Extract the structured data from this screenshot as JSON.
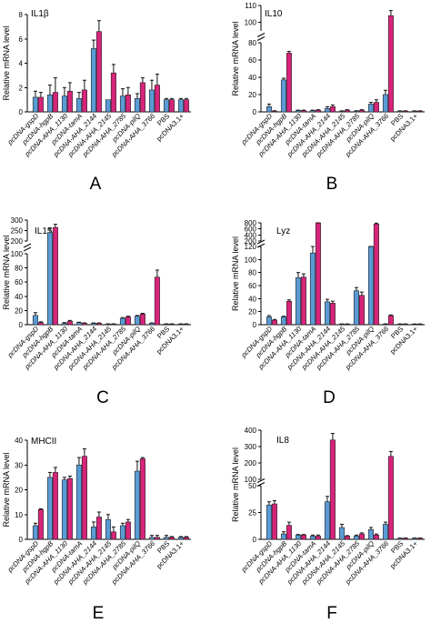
{
  "colors": {
    "series1": "#5b9bd5",
    "series2": "#d6257a",
    "edge": "#222222"
  },
  "x_labels": [
    "pcDNA-gspD",
    "pcDNA-hgpB",
    "pcDNA-AHA_1130",
    "pcDNA-tamA",
    "pcDNA-AHA_2144",
    "pcDNA-AHA_2145",
    "pcDNA-AHA_2785",
    "pcDNA-pilQ",
    "pcDNA-AHA_3766",
    "PBS",
    "pcDNA3.1+"
  ],
  "chart_data": [
    {
      "type": "bar",
      "letter": "A",
      "title": "IL1β",
      "ylabel": "Relative mRNA level",
      "ylim": [
        0,
        8
      ],
      "yticks": [
        0,
        2,
        4,
        6,
        8
      ],
      "grid": false,
      "legend": "none",
      "categories": [
        "pcDNA-gspD",
        "pcDNA-hgpB",
        "pcDNA-AHA_1130",
        "pcDNA-tamA",
        "pcDNA-AHA_2144",
        "pcDNA-AHA_2145",
        "pcDNA-AHA_2785",
        "pcDNA-pilQ",
        "pcDNA-AHA_3766",
        "PBS",
        "pcDNA3.1+"
      ],
      "series": [
        {
          "values": [
            1.2,
            1.4,
            1.3,
            1.1,
            5.2,
            1.0,
            1.3,
            1.1,
            1.8,
            1.0,
            1.0
          ],
          "errors": [
            0.5,
            0.8,
            0.7,
            0.5,
            0.7,
            0.0,
            0.6,
            0.4,
            0.8,
            0.1,
            0.1
          ]
        },
        {
          "values": [
            1.2,
            1.6,
            1.7,
            1.8,
            6.6,
            3.2,
            1.4,
            2.4,
            2.2,
            1.0,
            1.0
          ],
          "errors": [
            0.4,
            1.2,
            0.7,
            0.8,
            0.9,
            0.7,
            0.6,
            0.4,
            0.9,
            0.1,
            0.1
          ]
        }
      ]
    },
    {
      "type": "bar",
      "letter": "B",
      "title": "IL10",
      "ylabel": "Relative mRNA level",
      "yticks": [
        0,
        20,
        40,
        60,
        80,
        100,
        110
      ],
      "grid": false,
      "legend": "none",
      "axis_break": {
        "low": [
          0,
          80
        ],
        "high": [
          95,
          110
        ]
      },
      "categories": [
        "pcDNA-gspD",
        "pcDNA-hgpB",
        "pcDNA-AHA_1130",
        "pcDNA-tamA",
        "pcDNA-AHA_2144",
        "pcDNA-AHA_2145",
        "pcDNA-AHA_2785",
        "pcDNA-pilQ",
        "pcDNA-AHA_3766",
        "PBS",
        "pcDNA3.1+"
      ],
      "series": [
        {
          "values": [
            6,
            37,
            1.5,
            1.5,
            4,
            1,
            1,
            9,
            20,
            1,
            1
          ],
          "errors": [
            3,
            2,
            0.5,
            0.5,
            2,
            0.2,
            0.3,
            2,
            5,
            0.2,
            0.2
          ]
        },
        {
          "values": [
            1,
            68,
            1.5,
            2,
            6,
            2,
            2,
            11,
            104,
            1,
            1
          ],
          "errors": [
            0.3,
            2,
            0.5,
            0.5,
            2,
            0.5,
            0.5,
            3,
            3,
            0.2,
            0.2
          ]
        }
      ]
    },
    {
      "type": "bar",
      "letter": "C",
      "title": "IL15",
      "ylabel": "Relative mRNA level",
      "yticks": [
        0,
        20,
        40,
        60,
        80,
        100,
        200,
        250,
        300
      ],
      "grid": false,
      "legend": "none",
      "axis_break": {
        "low": [
          0,
          100
        ],
        "high": [
          200,
          300
        ]
      },
      "categories": [
        "pcDNA-gspD",
        "pcDNA-hgpB",
        "pcDNA-AHA_1130",
        "pcDNA-tamA",
        "pcDNA-AHA_2144",
        "pcDNA-AHA_2145",
        "pcDNA-AHA_2785",
        "pcDNA-pilQ",
        "pcDNA-AHA_3766",
        "PBS",
        "pcDNA3.1+"
      ],
      "series": [
        {
          "values": [
            13,
            240,
            2,
            3,
            2,
            1,
            9,
            12,
            2,
            1,
            1
          ],
          "errors": [
            4,
            20,
            1,
            0.5,
            0.5,
            0.2,
            1,
            1,
            0.5,
            0.2,
            0.2
          ]
        },
        {
          "values": [
            3,
            265,
            5,
            2,
            2,
            1,
            11,
            15,
            67,
            1,
            1
          ],
          "errors": [
            1,
            15,
            1,
            0.5,
            0.5,
            0.2,
            1,
            1,
            10,
            0.2,
            0.2
          ]
        }
      ]
    },
    {
      "type": "bar",
      "letter": "D",
      "title": "Lyz",
      "ylabel": "Relative mRNA level",
      "yticks": [
        0,
        20,
        40,
        60,
        80,
        100,
        120,
        200,
        400,
        600,
        800
      ],
      "grid": false,
      "legend": "none",
      "axis_break": {
        "low": [
          0,
          120
        ],
        "high": [
          200,
          800
        ]
      },
      "categories": [
        "pcDNA-gspD",
        "pcDNA-hgpB",
        "pcDNA-AHA_1130",
        "pcDNA-tamA",
        "pcDNA-AHA_2144",
        "pcDNA-AHA_2145",
        "pcDNA-AHA_2785",
        "pcDNA-pilQ",
        "pcDNA-AHA_3766",
        "PBS",
        "pcDNA3.1+"
      ],
      "series": [
        {
          "values": [
            12,
            12,
            72,
            110,
            35,
            1,
            52,
            125,
            1,
            1,
            1
          ],
          "errors": [
            2,
            1,
            8,
            10,
            4,
            0.2,
            5,
            10,
            0.3,
            0.2,
            0.2
          ]
        },
        {
          "values": [
            7,
            36,
            73,
            800,
            33,
            1,
            45,
            760,
            14,
            1,
            1
          ],
          "errors": [
            1,
            2,
            5,
            20,
            3,
            0.2,
            5,
            30,
            1,
            0.2,
            0.2
          ]
        }
      ]
    },
    {
      "type": "bar",
      "letter": "E",
      "title": "MHCII",
      "ylabel": "Relative mRNA level",
      "ylim": [
        0,
        40
      ],
      "yticks": [
        0,
        10,
        20,
        30,
        40
      ],
      "grid": false,
      "legend": "none",
      "categories": [
        "pcDNA-gspD",
        "pcDNA-hgpB",
        "pcDNA-AHA_1130",
        "pcDNA-tamA",
        "pcDNA-AHA_2144",
        "pcDNA-AHA_2145",
        "pcDNA-AHA_2785",
        "pcDNA-pilQ",
        "pcDNA-AHA_3766",
        "PBS",
        "pcDNA3.1+"
      ],
      "series": [
        {
          "values": [
            5.5,
            25,
            24,
            30,
            5,
            8,
            5.5,
            27.5,
            0.8,
            0.8,
            0.8
          ],
          "errors": [
            1,
            2,
            1,
            3,
            2,
            2,
            1,
            4,
            0.8,
            0.8,
            0.3
          ]
        },
        {
          "values": [
            12,
            27,
            24.5,
            33.5,
            9,
            3,
            7,
            32.5,
            0.8,
            0.8,
            0.8
          ],
          "errors": [
            0.3,
            2,
            1,
            3,
            2,
            2,
            1,
            0.5,
            0.8,
            0.3,
            0.3
          ]
        }
      ]
    },
    {
      "type": "bar",
      "letter": "F",
      "title": "IL8",
      "ylabel": "Relative mRNA level",
      "yticks": [
        0,
        25,
        50,
        100,
        200,
        300,
        400
      ],
      "grid": false,
      "legend": "none",
      "axis_break": {
        "low": [
          0,
          50
        ],
        "high": [
          100,
          400
        ]
      },
      "categories": [
        "pcDNA-gspD",
        "pcDNA-hgpB",
        "pcDNA-AHA_1130",
        "pcDNA-tamA",
        "pcDNA-AHA_2144",
        "pcDNA-AHA_2145",
        "pcDNA-AHA_2785",
        "pcDNA-pilQ",
        "pcDNA-AHA_3766",
        "PBS",
        "pcDNA3.1+"
      ],
      "series": [
        {
          "values": [
            32,
            5,
            4,
            3,
            35,
            11,
            3,
            9,
            14,
            1,
            1
          ],
          "errors": [
            3,
            2,
            0.5,
            1,
            5,
            3,
            1,
            2,
            2,
            0.2,
            0.2
          ]
        },
        {
          "values": [
            33,
            13,
            4,
            3,
            340,
            3,
            5,
            4,
            240,
            1,
            1
          ],
          "errors": [
            3,
            3,
            0.5,
            1,
            40,
            0.5,
            1,
            1,
            30,
            0.2,
            0.2
          ]
        }
      ]
    }
  ]
}
